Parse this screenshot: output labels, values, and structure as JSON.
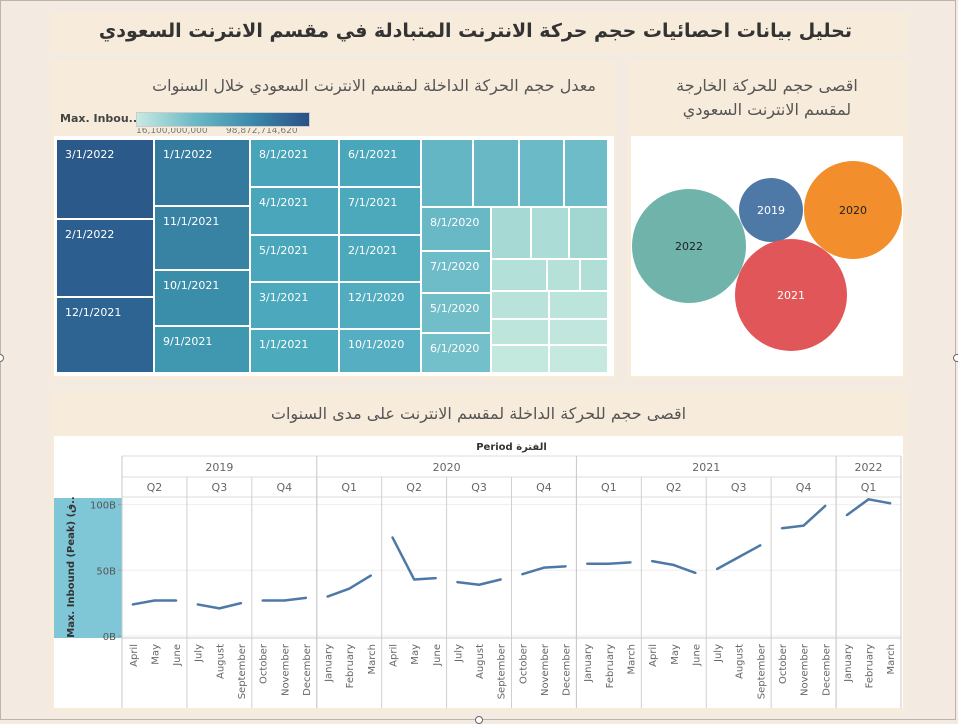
{
  "header": {
    "title": "تحليل بيانات احصائيات حجم حركة الانترنت المتبادلة في مقسم الانترنت السعودي"
  },
  "treemap": {
    "title": "معدل حجم الحركة الداخلة لمقسم الانترنت السعودي خلال السنوات",
    "legend": {
      "label": "Max. Inbou..",
      "min_text": "16,100,000,000",
      "max_text": "98,872,714,620"
    },
    "cells": [
      {
        "label": "3/1/2022",
        "color": "#2b5a8a"
      },
      {
        "label": "2/1/2022",
        "color": "#2c5f8f"
      },
      {
        "label": "12/1/2021",
        "color": "#2d6491"
      },
      {
        "label": "1/1/2022",
        "color": "#347a9e"
      },
      {
        "label": "11/1/2021",
        "color": "#3883a4"
      },
      {
        "label": "10/1/2021",
        "color": "#3b8eaa"
      },
      {
        "label": "9/1/2021",
        "color": "#3f98b0"
      },
      {
        "label": "8/1/2021",
        "color": "#48a4b9"
      },
      {
        "label": "4/1/2021",
        "color": "#4aa6ba"
      },
      {
        "label": "5/1/2021",
        "color": "#4aa7bb"
      },
      {
        "label": "3/1/2021",
        "color": "#4ca8bc"
      },
      {
        "label": "1/1/2021",
        "color": "#4caabd"
      },
      {
        "label": "6/1/2021",
        "color": "#4aa6ba"
      },
      {
        "label": "7/1/2021",
        "color": "#4ca9bc"
      },
      {
        "label": "2/1/2021",
        "color": "#4ca9bc"
      },
      {
        "label": "12/1/2020",
        "color": "#52acbf"
      },
      {
        "label": "10/1/2020",
        "color": "#55aec1"
      },
      {
        "label": "8/1/2020",
        "color": "#69b8c6"
      },
      {
        "label": "7/1/2020",
        "color": "#6ebcc8"
      },
      {
        "label": "5/1/2020",
        "color": "#71bec9"
      },
      {
        "label": "6/1/2020",
        "color": "#73bfca"
      }
    ]
  },
  "bubbles": {
    "title_line1": "اقصى حجم للحركة الخارجة",
    "title_line2": "لمقسم الانترنت السعودي",
    "items": [
      {
        "label": "2022",
        "color": "#6fb3ab"
      },
      {
        "label": "2019",
        "color": "#4e79a7"
      },
      {
        "label": "2020",
        "color": "#f28e2b"
      },
      {
        "label": "2021",
        "color": "#e15759"
      }
    ]
  },
  "line_chart": {
    "title": "اقصى حجم للحركة الداخلة لمقسم الانترنت على مدى السنوات",
    "period_label": "Period الفترة",
    "ylabel": "Max. Inbound (Peak) (ق..",
    "line_color": "#4e79a7"
  },
  "chart_data": [
    {
      "type": "line",
      "title": "اقصى حجم للحركة الداخلة لمقسم الانترنت على مدى السنوات",
      "xlabel": "Period الفترة",
      "ylabel": "Max. Inbound (Peak) (ق..",
      "ylim": [
        0,
        105
      ],
      "yticks": [
        {
          "v": 0,
          "t": "0B"
        },
        {
          "v": 50,
          "t": "50B"
        },
        {
          "v": 100,
          "t": "100B"
        }
      ],
      "years": [
        {
          "label": "2019",
          "quarters": [
            {
              "label": "Q2",
              "months": [
                {
                  "m": "April",
                  "v": 24
                },
                {
                  "m": "May",
                  "v": 27
                },
                {
                  "m": "June",
                  "v": 27
                }
              ]
            },
            {
              "label": "Q3",
              "months": [
                {
                  "m": "July",
                  "v": 24
                },
                {
                  "m": "August",
                  "v": 21
                },
                {
                  "m": "September",
                  "v": 25
                }
              ]
            },
            {
              "label": "Q4",
              "months": [
                {
                  "m": "October",
                  "v": 27
                },
                {
                  "m": "November",
                  "v": 27
                },
                {
                  "m": "December",
                  "v": 29
                }
              ]
            }
          ]
        },
        {
          "label": "2020",
          "quarters": [
            {
              "label": "Q1",
              "months": [
                {
                  "m": "January",
                  "v": 30
                },
                {
                  "m": "February",
                  "v": 36
                },
                {
                  "m": "March",
                  "v": 46
                }
              ]
            },
            {
              "label": "Q2",
              "months": [
                {
                  "m": "April",
                  "v": 75
                },
                {
                  "m": "May",
                  "v": 43
                },
                {
                  "m": "June",
                  "v": 44
                }
              ]
            },
            {
              "label": "Q3",
              "months": [
                {
                  "m": "July",
                  "v": 41
                },
                {
                  "m": "August",
                  "v": 39
                },
                {
                  "m": "September",
                  "v": 43
                }
              ]
            },
            {
              "label": "Q4",
              "months": [
                {
                  "m": "October",
                  "v": 47
                },
                {
                  "m": "November",
                  "v": 52
                },
                {
                  "m": "December",
                  "v": 53
                }
              ]
            }
          ]
        },
        {
          "label": "2021",
          "quarters": [
            {
              "label": "Q1",
              "months": [
                {
                  "m": "January",
                  "v": 55
                },
                {
                  "m": "February",
                  "v": 55
                },
                {
                  "m": "March",
                  "v": 56
                }
              ]
            },
            {
              "label": "Q2",
              "months": [
                {
                  "m": "April",
                  "v": 57
                },
                {
                  "m": "May",
                  "v": 54
                },
                {
                  "m": "June",
                  "v": 48
                }
              ]
            },
            {
              "label": "Q3",
              "months": [
                {
                  "m": "July",
                  "v": 51
                },
                {
                  "m": "August",
                  "v": 60
                },
                {
                  "m": "September",
                  "v": 69
                }
              ]
            },
            {
              "label": "Q4",
              "months": [
                {
                  "m": "October",
                  "v": 82
                },
                {
                  "m": "November",
                  "v": 84
                },
                {
                  "m": "December",
                  "v": 99
                }
              ]
            }
          ]
        },
        {
          "label": "2022",
          "quarters": [
            {
              "label": "Q1",
              "months": [
                {
                  "m": "January",
                  "v": 92
                },
                {
                  "m": "February",
                  "v": 104
                },
                {
                  "m": "March",
                  "v": 101
                }
              ]
            }
          ]
        }
      ]
    },
    {
      "type": "bubble",
      "title": "اقصى حجم للحركة الخارجة لمقسم الانترنت السعودي",
      "categories": [
        "2022",
        "2019",
        "2020",
        "2021"
      ],
      "relative_size": [
        1.0,
        0.55,
        0.85,
        0.97
      ]
    }
  ]
}
